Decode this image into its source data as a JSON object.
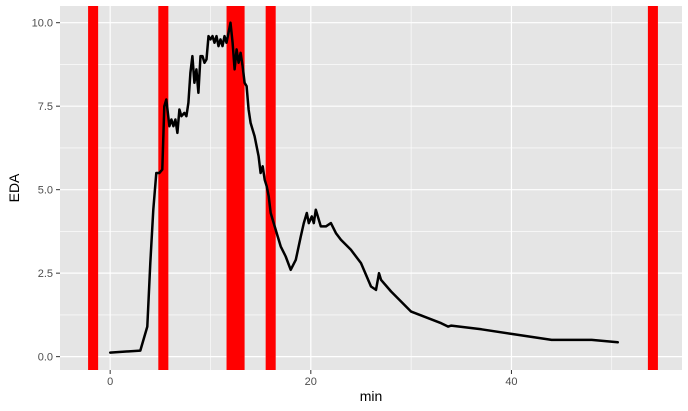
{
  "chart_data": {
    "type": "line",
    "xlabel": "min",
    "ylabel": "EDA",
    "xlim": [
      -5,
      57
    ],
    "ylim": [
      -0.4,
      10.5
    ],
    "x_ticks": [
      0,
      20,
      40
    ],
    "x_tick_labels": [
      "0",
      "20",
      "40"
    ],
    "y_ticks": [
      0.0,
      2.5,
      5.0,
      7.5,
      10.0
    ],
    "y_tick_labels": [
      "0.0",
      "2.5",
      "5.0",
      "7.5",
      "10.0"
    ],
    "grid": true,
    "legend": "none",
    "colors": {
      "panel": "#e5e5e5",
      "grid": "#ffffff",
      "line": "#000000",
      "bands": "#ff0000"
    },
    "event_bands": [
      {
        "x_start": -2.2,
        "x_end": -1.2
      },
      {
        "x_start": 4.8,
        "x_end": 5.8
      },
      {
        "x_start": 11.6,
        "x_end": 13.4
      },
      {
        "x_start": 15.5,
        "x_end": 16.5
      },
      {
        "x_start": 53.6,
        "x_end": 54.6
      }
    ],
    "series": [
      {
        "x": [
          0,
          3,
          3.7,
          4.0,
          4.3,
          4.6,
          4.9,
          5.2,
          5.4,
          5.6,
          5.9,
          6.1,
          6.3,
          6.5,
          6.7,
          6.9,
          7.1,
          7.4,
          7.6,
          7.8,
          8.0,
          8.2,
          8.4,
          8.6,
          8.8,
          9.0,
          9.2,
          9.4,
          9.6,
          9.8,
          10.0,
          10.2,
          10.4,
          10.6,
          10.8,
          11.0,
          11.2,
          11.4,
          11.6,
          11.8,
          12.0,
          12.2,
          12.4,
          12.6,
          12.8,
          13.0,
          13.2,
          13.4,
          13.6,
          13.8,
          14.0,
          14.2,
          14.4,
          14.6,
          14.8,
          15.0,
          15.2,
          15.4,
          15.6,
          15.8,
          16.0,
          16.3,
          16.6,
          17.0,
          17.5,
          18.0,
          18.5,
          19.0,
          19.3,
          19.6,
          19.8,
          20.1,
          20.3,
          20.5,
          21.0,
          21.5,
          22.0,
          22.5,
          23.0,
          24.0,
          25.0,
          26.0,
          26.5,
          26.8,
          27.0,
          28.0,
          30.0,
          33.0,
          33.7,
          34.0,
          37.0,
          40.0,
          42.0,
          44.0,
          48.0,
          50.6
        ],
        "y": [
          0.12,
          0.18,
          0.9,
          2.8,
          4.4,
          5.5,
          5.5,
          5.6,
          7.5,
          7.7,
          6.9,
          7.1,
          6.9,
          7.1,
          6.7,
          7.4,
          7.2,
          7.3,
          7.2,
          7.6,
          8.5,
          9.0,
          8.2,
          8.6,
          7.9,
          9.0,
          9.0,
          8.8,
          8.9,
          9.6,
          9.5,
          9.6,
          9.4,
          9.6,
          9.3,
          9.5,
          9.3,
          9.6,
          9.4,
          9.7,
          10.0,
          9.4,
          8.6,
          9.2,
          8.8,
          9.1,
          8.7,
          8.2,
          8.1,
          7.4,
          7.0,
          6.8,
          6.6,
          6.3,
          6.0,
          5.5,
          5.7,
          5.3,
          5.1,
          4.8,
          4.3,
          4.0,
          3.7,
          3.3,
          3.0,
          2.6,
          2.9,
          3.6,
          4.0,
          4.3,
          4.0,
          4.2,
          4.0,
          4.4,
          3.9,
          3.9,
          4.0,
          3.7,
          3.5,
          3.2,
          2.8,
          2.1,
          2.0,
          2.5,
          2.3,
          1.95,
          1.35,
          1.0,
          0.9,
          0.93,
          0.82,
          0.68,
          0.59,
          0.5,
          0.5,
          0.43
        ]
      }
    ]
  }
}
